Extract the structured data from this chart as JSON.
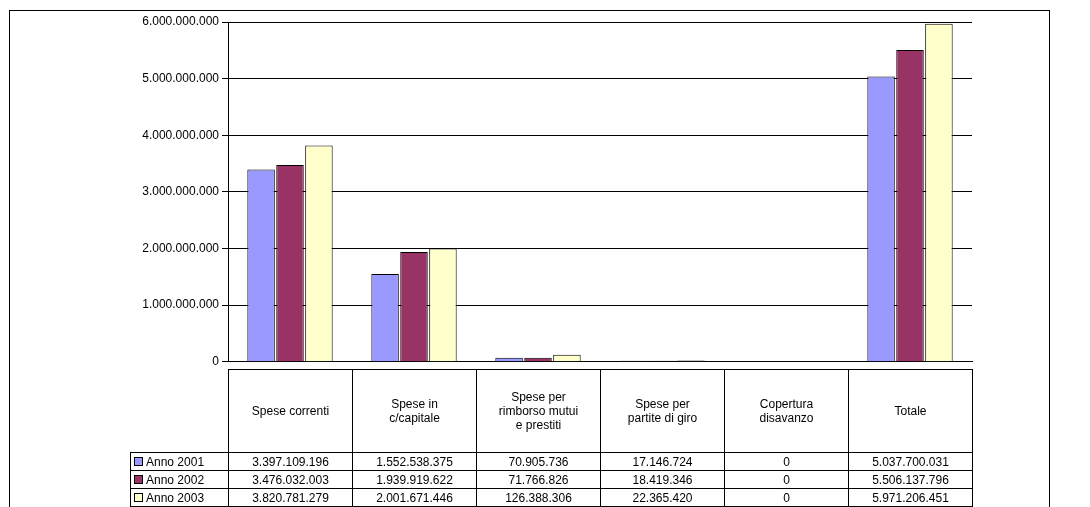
{
  "chart_data": {
    "type": "bar",
    "categories": [
      "Spese correnti",
      "Spese in c/capitale",
      "Spese per rimborso mutui e prestiti",
      "Spese per partite di giro",
      "Copertura disavanzo",
      "Totale"
    ],
    "series": [
      {
        "name": "Anno 2001",
        "color": "#9999ff",
        "values": [
          3397109196,
          1552538375,
          70905736,
          17146724,
          0,
          5037700031
        ],
        "value_labels": [
          "3.397.109.196",
          "1.552.538.375",
          "70.905.736",
          "17.146.724",
          "0",
          "5.037.700.031"
        ]
      },
      {
        "name": "Anno 2002",
        "color": "#993366",
        "values": [
          3476032003,
          1939919622,
          71766826,
          18419346,
          0,
          5506137796
        ],
        "value_labels": [
          "3.476.032.003",
          "1.939.919.622",
          "71.766.826",
          "18.419.346",
          "0",
          "5.506.137.796"
        ]
      },
      {
        "name": "Anno 2003",
        "color": "#ffffcc",
        "values": [
          3820781279,
          2001671446,
          126388306,
          22365420,
          0,
          5971206451
        ],
        "value_labels": [
          "3.820.781.279",
          "2.001.671.446",
          "126.388.306",
          "22.365.420",
          "0",
          "5.971.206.451"
        ]
      }
    ],
    "ylim": [
      0,
      6000000000
    ],
    "yticks": [
      0,
      {
        "value": 1000000000,
        "label": "1.000.000.000"
      },
      {
        "value": 2000000000,
        "label": "2.000.000.000"
      },
      {
        "value": 3000000000,
        "label": "3.000.000.000"
      },
      {
        "value": 4000000000,
        "label": "4.000.000.000"
      },
      {
        "value": 5000000000,
        "label": "5.000.000.000"
      },
      {
        "value": 6000000000,
        "label": "6.000.000.000"
      }
    ],
    "grid": "y",
    "legend": "bottom",
    "tick_labels": "y"
  }
}
